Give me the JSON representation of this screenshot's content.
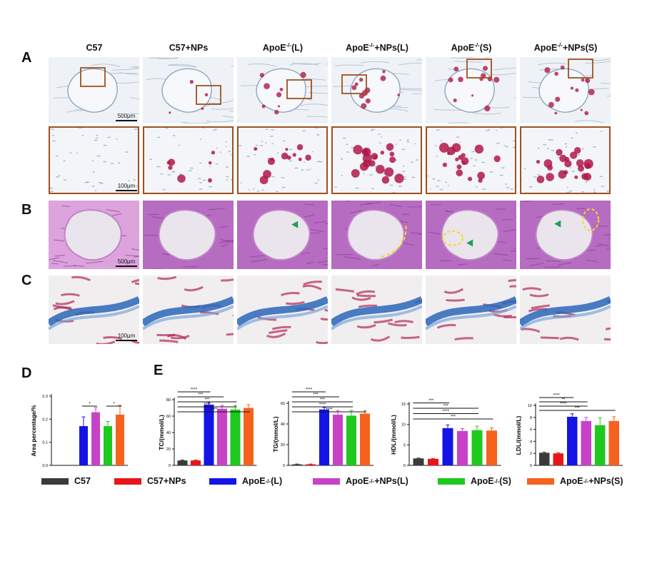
{
  "figure": {
    "panel_labels": [
      "A",
      "B",
      "C",
      "D",
      "E"
    ],
    "columns": [
      {
        "main": "C57",
        "sup": "",
        "tail": ""
      },
      {
        "main": "C57+NPs",
        "sup": "",
        "tail": ""
      },
      {
        "main": "ApoE",
        "sup": "-/-",
        "tail": "(L)"
      },
      {
        "main": "ApoE",
        "sup": "-/-",
        "tail": "+NPs(L)"
      },
      {
        "main": "ApoE",
        "sup": "-/-",
        "tail": "(S)"
      },
      {
        "main": "ApoE",
        "sup": "-/-",
        "tail": "+NPs(S)"
      }
    ],
    "scale_bars": {
      "row_a_top": "500μm",
      "row_a_zoom": "100μm",
      "row_b": "500μm",
      "row_c": "100μm"
    },
    "legend": [
      {
        "main": "C57",
        "sup": "",
        "tail": "",
        "color": "#3a3a3a"
      },
      {
        "main": "C57+NPs",
        "sup": "",
        "tail": "",
        "color": "#e8161b"
      },
      {
        "main": "ApoE",
        "sup": "-/-",
        "tail": "(L)",
        "color": "#1414e6"
      },
      {
        "main": "ApoE",
        "sup": "-/-",
        "tail": "+NPs(L)",
        "color": "#c842c8"
      },
      {
        "main": "ApoE",
        "sup": "-/-",
        "tail": "(S)",
        "color": "#1ec81e"
      },
      {
        "main": "ApoE",
        "sup": "-/-",
        "tail": "+NPs(S)",
        "color": "#f5621e"
      }
    ],
    "stain_colors": {
      "background": "#eef2f6",
      "oil_red": "#b01848",
      "he_pink": "#d6a2d8",
      "he_purple": "#8a3a9a",
      "masson_blue": "#2a66b8",
      "masson_red": "#b02a5a",
      "annotation_yellow": "#f2dc1e",
      "annotation_green": "#1aa05a",
      "zoom_box": "#a0501e"
    }
  },
  "chart_data": [
    {
      "type": "bar",
      "panel": "D",
      "ylabel": "Area percentage/%",
      "ylim": [
        0,
        0.3
      ],
      "yticks": [
        "0.0",
        "0.1",
        "0.2",
        "0.3"
      ],
      "series": [
        {
          "name": "C57",
          "values": [
            0
          ],
          "error": [
            0
          ]
        },
        {
          "name": "C57+NPs",
          "values": [
            0
          ],
          "error": [
            0
          ]
        },
        {
          "name": "ApoE-/-(L)",
          "values": [
            0.17
          ],
          "error": [
            0.04
          ]
        },
        {
          "name": "ApoE-/-+NPs(L)",
          "values": [
            0.23
          ],
          "error": [
            0.02
          ]
        },
        {
          "name": "ApoE-/-(S)",
          "values": [
            0.17
          ],
          "error": [
            0.02
          ]
        },
        {
          "name": "ApoE-/-+NPs(S)",
          "values": [
            0.22
          ],
          "error": [
            0.04
          ]
        }
      ],
      "comparisons": [
        {
          "from": 2,
          "to": 3,
          "label": "*"
        },
        {
          "from": 4,
          "to": 5,
          "label": "*"
        }
      ]
    },
    {
      "type": "bar",
      "panel": "E",
      "ylabel": "TC/(mmol/L)",
      "ylim": [
        0,
        80
      ],
      "yticks": [
        "0",
        "20",
        "40",
        "60",
        "80"
      ],
      "series": [
        {
          "name": "C57",
          "values": [
            6
          ],
          "error": [
            0.6
          ]
        },
        {
          "name": "C57+NPs",
          "values": [
            6
          ],
          "error": [
            0.5
          ]
        },
        {
          "name": "ApoE-/-(L)",
          "values": [
            74
          ],
          "error": [
            3
          ]
        },
        {
          "name": "ApoE-/-+NPs(L)",
          "values": [
            69
          ],
          "error": [
            4
          ]
        },
        {
          "name": "ApoE-/-(S)",
          "values": [
            68
          ],
          "error": [
            5
          ]
        },
        {
          "name": "ApoE-/-+NPs(S)",
          "values": [
            70
          ],
          "error": [
            4
          ]
        }
      ],
      "comparisons": [
        {
          "from": 0,
          "to": 2,
          "label": "****"
        },
        {
          "from": 0,
          "to": 3,
          "label": "***"
        },
        {
          "from": 0,
          "to": 4,
          "label": "***"
        },
        {
          "from": 0,
          "to": 4,
          "label": "****"
        },
        {
          "from": 0,
          "to": 5,
          "label": "****"
        }
      ]
    },
    {
      "type": "bar",
      "panel": "E",
      "ylabel": "TG/(mmol/L)",
      "ylim": [
        0,
        60
      ],
      "yticks": [
        "0",
        "20",
        "40",
        "60"
      ],
      "series": [
        {
          "name": "C57",
          "values": [
            1
          ],
          "error": [
            0.3
          ]
        },
        {
          "name": "C57+NPs",
          "values": [
            1
          ],
          "error": [
            0.3
          ]
        },
        {
          "name": "ApoE-/-(L)",
          "values": [
            54
          ],
          "error": [
            2
          ]
        },
        {
          "name": "ApoE-/-+NPs(L)",
          "values": [
            49
          ],
          "error": [
            4
          ]
        },
        {
          "name": "ApoE-/-(S)",
          "values": [
            48
          ],
          "error": [
            5
          ]
        },
        {
          "name": "ApoE-/-+NPs(S)",
          "values": [
            50
          ],
          "error": [
            3
          ]
        }
      ],
      "comparisons": [
        {
          "from": 0,
          "to": 2,
          "label": "****"
        },
        {
          "from": 0,
          "to": 3,
          "label": "***"
        },
        {
          "from": 0,
          "to": 4,
          "label": "***"
        },
        {
          "from": 0,
          "to": 4,
          "label": "****"
        },
        {
          "from": 0,
          "to": 5,
          "label": "****"
        }
      ]
    },
    {
      "type": "bar",
      "panel": "E",
      "ylabel": "HDL/(mmol/L)",
      "ylim": [
        0,
        15
      ],
      "yticks": [
        "0",
        "5",
        "10",
        "15"
      ],
      "series": [
        {
          "name": "C57",
          "values": [
            1.7
          ],
          "error": [
            0.1
          ]
        },
        {
          "name": "C57+NPs",
          "values": [
            1.6
          ],
          "error": [
            0.1
          ]
        },
        {
          "name": "ApoE-/-(L)",
          "values": [
            9.1
          ],
          "error": [
            0.8
          ]
        },
        {
          "name": "ApoE-/-+NPs(L)",
          "values": [
            8.4
          ],
          "error": [
            0.6
          ]
        },
        {
          "name": "ApoE-/-(S)",
          "values": [
            8.6
          ],
          "error": [
            1.0
          ]
        },
        {
          "name": "ApoE-/-+NPs(S)",
          "values": [
            8.5
          ],
          "error": [
            0.7
          ]
        }
      ],
      "comparisons": [
        {
          "from": 0,
          "to": 2,
          "label": "***"
        },
        {
          "from": 0,
          "to": 4,
          "label": "***"
        },
        {
          "from": 0,
          "to": 4,
          "label": "****"
        },
        {
          "from": 0,
          "to": 5,
          "label": "***"
        }
      ]
    },
    {
      "type": "bar",
      "panel": "E",
      "ylabel": "LDL/(mmol/L)",
      "ylim": [
        0,
        10
      ],
      "yticks": [
        "0",
        "2",
        "4",
        "6",
        "8",
        "10"
      ],
      "series": [
        {
          "name": "C57",
          "values": [
            2.1
          ],
          "error": [
            0.1
          ]
        },
        {
          "name": "C57+NPs",
          "values": [
            2.0
          ],
          "error": [
            0.1
          ]
        },
        {
          "name": "ApoE-/-(L)",
          "values": [
            8.1
          ],
          "error": [
            0.5
          ]
        },
        {
          "name": "ApoE-/-+NPs(L)",
          "values": [
            7.4
          ],
          "error": [
            0.6
          ]
        },
        {
          "name": "ApoE-/-(S)",
          "values": [
            6.7
          ],
          "error": [
            1.2
          ]
        },
        {
          "name": "ApoE-/-+NPs(S)",
          "values": [
            7.4
          ],
          "error": [
            0.7
          ]
        }
      ],
      "comparisons": [
        {
          "from": 0,
          "to": 2,
          "label": "****"
        },
        {
          "from": 0,
          "to": 3,
          "label": "**"
        },
        {
          "from": 0,
          "to": 3,
          "label": "****"
        },
        {
          "from": 0,
          "to": 5,
          "label": "***"
        }
      ]
    }
  ]
}
